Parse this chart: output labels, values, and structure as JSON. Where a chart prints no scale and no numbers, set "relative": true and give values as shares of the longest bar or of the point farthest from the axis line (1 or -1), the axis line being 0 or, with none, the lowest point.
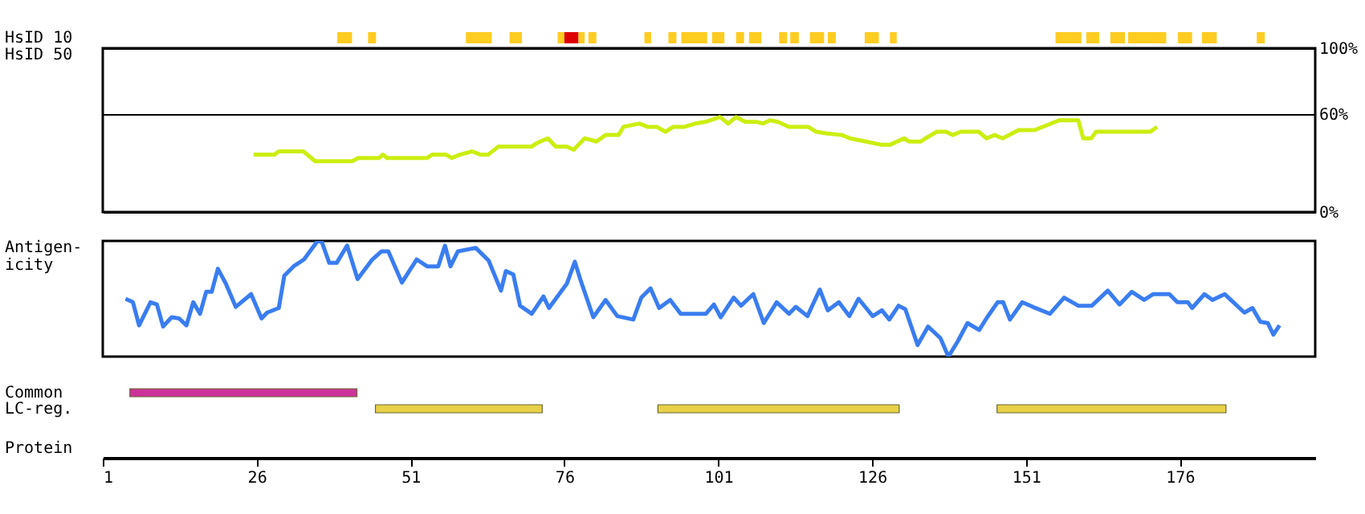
{
  "chart_data": [
    {
      "type": "bar",
      "orientation": "horizontal",
      "categories": [
        "HsID 10"
      ],
      "xlim": [
        1,
        198
      ],
      "tick_labels": false,
      "series": [
        {
          "color": "#ffcc22",
          "base": [
            39.1
          ],
          "values": [
            2.4
          ]
        },
        {
          "color": "#ffcc22",
          "base": [
            44.1
          ],
          "values": [
            1.3
          ]
        },
        {
          "color": "#ffcc22",
          "base": [
            60.0
          ],
          "values": [
            4.2
          ]
        },
        {
          "color": "#ffcc22",
          "base": [
            67.1
          ],
          "values": [
            2.0
          ]
        },
        {
          "color": "#ffcc22",
          "base": [
            74.9
          ],
          "values": [
            1.1
          ]
        },
        {
          "color": "#dd0000",
          "base": [
            76.0
          ],
          "values": [
            2.3
          ]
        },
        {
          "color": "#ffcc22",
          "base": [
            78.3
          ],
          "values": [
            1.0
          ]
        },
        {
          "color": "#ffcc22",
          "base": [
            79.9
          ],
          "values": [
            1.3
          ]
        },
        {
          "color": "#ffcc22",
          "base": [
            89.0
          ],
          "values": [
            1.1
          ]
        },
        {
          "color": "#ffcc22",
          "base": [
            92.9
          ],
          "values": [
            1.3
          ]
        },
        {
          "color": "#ffcc22",
          "base": [
            95.0
          ],
          "values": [
            4.2
          ]
        },
        {
          "color": "#ffcc22",
          "base": [
            100.0
          ],
          "values": [
            2.0
          ]
        },
        {
          "color": "#ffcc22",
          "base": [
            103.9
          ],
          "values": [
            1.3
          ]
        },
        {
          "color": "#ffcc22",
          "base": [
            106.0
          ],
          "values": [
            2.0
          ]
        },
        {
          "color": "#ffcc22",
          "base": [
            110.9
          ],
          "values": [
            1.3
          ]
        },
        {
          "color": "#ffcc22",
          "base": [
            112.7
          ],
          "values": [
            1.4
          ]
        },
        {
          "color": "#ffcc22",
          "base": [
            115.9
          ],
          "values": [
            2.3
          ]
        },
        {
          "color": "#ffcc22",
          "base": [
            118.8
          ],
          "values": [
            1.3
          ]
        },
        {
          "color": "#ffcc22",
          "base": [
            124.8
          ],
          "values": [
            2.3
          ]
        },
        {
          "color": "#ffcc22",
          "base": [
            128.9
          ],
          "values": [
            1.1
          ]
        },
        {
          "color": "#ffcc22",
          "base": [
            155.8
          ],
          "values": [
            4.2
          ]
        },
        {
          "color": "#ffcc22",
          "base": [
            160.8
          ],
          "values": [
            2.1
          ]
        },
        {
          "color": "#ffcc22",
          "base": [
            164.7
          ],
          "values": [
            2.4
          ]
        },
        {
          "color": "#ffcc22",
          "base": [
            167.6
          ],
          "values": [
            6.2
          ]
        },
        {
          "color": "#ffcc22",
          "base": [
            175.7
          ],
          "values": [
            2.3
          ]
        },
        {
          "color": "#ffcc22",
          "base": [
            179.6
          ],
          "values": [
            2.4
          ]
        },
        {
          "color": "#ffcc22",
          "base": [
            188.5
          ],
          "values": [
            1.3
          ]
        }
      ]
    },
    {
      "type": "line",
      "ylabel": "HsID 50",
      "xlim": [
        1,
        198
      ],
      "ylim": [
        0,
        100
      ],
      "yticks": [
        {
          "value": 0,
          "label": "0%"
        },
        {
          "value": 60,
          "label": "60%"
        },
        {
          "value": 100,
          "label": "100%"
        }
      ],
      "grid": "y",
      "tick_labels": "y",
      "color": "#ccee11",
      "x": [
        25.5,
        28.9,
        29.6,
        33.6,
        35.5,
        41.5,
        42.5,
        45.9,
        46.5,
        47.2,
        53.7,
        54.5,
        56.8,
        57.7,
        59,
        61,
        62.4,
        63.6,
        65.3,
        70.7,
        71.5,
        73.3,
        74.6,
        76.4,
        77.5,
        79.3,
        81.2,
        82.7,
        84.8,
        85.6,
        88.2,
        89.5,
        91,
        92.4,
        93.7,
        95.5,
        97.3,
        98.9,
        101.3,
        102.6,
        103.9,
        105.4,
        107.3,
        108.3,
        109.4,
        110.7,
        112.5,
        115.6,
        116.9,
        118.5,
        121.1,
        122.4,
        125,
        127.6,
        128.9,
        131.2,
        132,
        133.9,
        134.7,
        136.5,
        138,
        139.1,
        140.4,
        143.3,
        144.6,
        145.9,
        147.2,
        149.8,
        152.4,
        156.4,
        159.5,
        160.3,
        161.6,
        162.4,
        171.2,
        172.3
      ],
      "values": [
        35,
        35,
        37,
        37,
        31,
        31,
        33,
        33,
        35,
        33,
        33,
        35,
        35,
        33,
        35,
        37,
        35,
        35,
        40,
        40,
        42,
        45,
        40,
        40,
        38,
        45,
        43,
        47,
        47,
        52,
        54,
        52,
        52,
        49,
        52,
        52,
        54,
        55,
        58,
        54,
        58,
        55,
        55,
        54,
        56,
        55,
        52,
        52,
        49,
        48,
        47,
        45,
        43,
        41,
        41,
        45,
        43,
        43,
        45,
        49,
        49,
        47,
        49,
        49,
        45,
        47,
        45,
        50,
        50,
        56,
        56,
        45,
        45,
        49,
        49,
        52
      ]
    },
    {
      "type": "line",
      "ylabel": "Antigen-\nicity",
      "relative": true,
      "xlim": [
        1,
        198
      ],
      "tick_labels": false,
      "color": "#3a7df0",
      "x": [
        4.7,
        5.9,
        6.9,
        8.75,
        9.8,
        10.8,
        12.2,
        13.4,
        14.6,
        15.7,
        16.8,
        17.8,
        18.7,
        19.7,
        21,
        22.6,
        25.1,
        26.8,
        27.7,
        29.6,
        30.5,
        32,
        33.7,
        35.9,
        36.6,
        37.8,
        39,
        40.7,
        42.4,
        44.8,
        46.3,
        47.4,
        49.6,
        52,
        53.7,
        55.5,
        56.6,
        57.5,
        58.7,
        61.6,
        63.7,
        65.7,
        66.5,
        67.7,
        68.8,
        70.7,
        72.6,
        73.5,
        76.4,
        77.7,
        78.7,
        80.7,
        82.7,
        84.6,
        87.2,
        88.5,
        90,
        91.4,
        93.2,
        94.9,
        99,
        100.3,
        101.4,
        103.5,
        104.7,
        106.7,
        108.4,
        110.5,
        112.5,
        113.6,
        115.5,
        117.5,
        118.8,
        120.6,
        122.3,
        123.8,
        126.1,
        127.6,
        128.8,
        130.3,
        131.4,
        133.4,
        135.1,
        137.1,
        138.4,
        139.9,
        141.5,
        143.4,
        144.7,
        146.4,
        147.3,
        148.4,
        150.4,
        152.1,
        154.9,
        157.2,
        159.5,
        161.7,
        164.3,
        166.2,
        168.2,
        170.2,
        171.7,
        174.3,
        175.6,
        177.3,
        178,
        180,
        181.3,
        183.3,
        184.7,
        186.5,
        187.8,
        189.1,
        190.3,
        191.2,
        192.2
      ],
      "values": [
        0.5,
        0.47,
        0.27,
        0.47,
        0.45,
        0.26,
        0.34,
        0.33,
        0.27,
        0.47,
        0.37,
        0.56,
        0.56,
        0.76,
        0.63,
        0.43,
        0.54,
        0.33,
        0.38,
        0.42,
        0.7,
        0.78,
        0.84,
        1,
        0.99,
        0.81,
        0.81,
        0.96,
        0.67,
        0.84,
        0.91,
        0.91,
        0.64,
        0.84,
        0.78,
        0.78,
        0.96,
        0.78,
        0.91,
        0.94,
        0.83,
        0.57,
        0.74,
        0.71,
        0.44,
        0.37,
        0.52,
        0.42,
        0.63,
        0.82,
        0.65,
        0.34,
        0.49,
        0.35,
        0.32,
        0.51,
        0.59,
        0.42,
        0.49,
        0.37,
        0.37,
        0.45,
        0.34,
        0.51,
        0.44,
        0.54,
        0.29,
        0.47,
        0.37,
        0.43,
        0.35,
        0.58,
        0.4,
        0.47,
        0.35,
        0.5,
        0.35,
        0.4,
        0.32,
        0.44,
        0.41,
        0.1,
        0.26,
        0.16,
        0,
        0.13,
        0.29,
        0.23,
        0.34,
        0.47,
        0.47,
        0.32,
        0.47,
        0.43,
        0.37,
        0.51,
        0.44,
        0.44,
        0.57,
        0.45,
        0.56,
        0.49,
        0.54,
        0.54,
        0.47,
        0.47,
        0.42,
        0.54,
        0.49,
        0.54,
        0.47,
        0.38,
        0.42,
        0.3,
        0.29,
        0.19,
        0.27
      ]
    },
    {
      "type": "bar",
      "orientation": "horizontal",
      "categories": [
        "Common",
        "LC-reg."
      ],
      "xlabel": "Protein",
      "xlim": [
        1,
        198
      ],
      "xticks": [
        1,
        26,
        51,
        76,
        101,
        126,
        151,
        176
      ],
      "tick_labels": "x",
      "series": [
        {
          "base": [
            5.4,
            45.3
          ],
          "values": [
            36.9,
            27.1
          ],
          "colors": [
            "#cc3399",
            "#e8d048"
          ]
        },
        {
          "base": [
            null,
            91.2
          ],
          "values": [
            null,
            39.2
          ],
          "colors": [
            null,
            "#e8d048"
          ]
        },
        {
          "base": [
            null,
            146.3
          ],
          "values": [
            null,
            37.2
          ],
          "colors": [
            null,
            "#e8d048"
          ]
        }
      ]
    }
  ]
}
